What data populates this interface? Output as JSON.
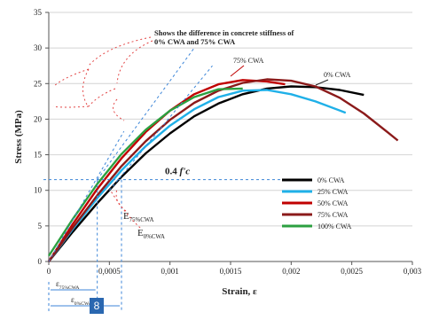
{
  "chart_data": {
    "type": "line",
    "xlabel": "Strain, ε",
    "ylabel": "Stress (MPa)",
    "xlim": [
      0,
      0.003
    ],
    "ylim": [
      0,
      35
    ],
    "x_ticks": [
      "0",
      "0,0005",
      "0,001",
      "0,0015",
      "0,002",
      "0,0025",
      "0,003"
    ],
    "y_ticks": [
      "0",
      "5",
      "10",
      "15",
      "20",
      "25",
      "30",
      "35"
    ],
    "grid": "horizontal",
    "legend_position": "lower-right",
    "series": [
      {
        "name": "0% CWA",
        "color": "#000000",
        "x": [
          0,
          0.0002,
          0.0004,
          0.0006,
          0.0008,
          0.001,
          0.0012,
          0.0014,
          0.0016,
          0.0018,
          0.002,
          0.0022,
          0.0024,
          0.0026
        ],
        "y": [
          0,
          4.2,
          8.2,
          11.9,
          15.2,
          18.0,
          20.4,
          22.2,
          23.5,
          24.3,
          24.6,
          24.5,
          24.1,
          23.4
        ]
      },
      {
        "name": "25% CWA",
        "color": "#1fb0e8",
        "x": [
          0,
          0.0002,
          0.0004,
          0.0006,
          0.0008,
          0.001,
          0.0012,
          0.0014,
          0.0016,
          0.0018,
          0.002,
          0.0022,
          0.00245
        ],
        "y": [
          0,
          4.6,
          8.9,
          12.8,
          16.2,
          19.1,
          21.4,
          23.1,
          24.0,
          24.1,
          23.5,
          22.5,
          20.9
        ]
      },
      {
        "name": "50% CWA",
        "color": "#c00000",
        "x": [
          0,
          0.0002,
          0.0004,
          0.0006,
          0.0008,
          0.001,
          0.0012,
          0.0014,
          0.0016,
          0.0018,
          0.00195
        ],
        "y": [
          0,
          5.3,
          10.2,
          14.5,
          18.2,
          21.2,
          23.5,
          24.9,
          25.5,
          25.3,
          24.9
        ]
      },
      {
        "name": "75% CWA",
        "color": "#8b1a1a",
        "x": [
          0,
          0.0002,
          0.0004,
          0.0006,
          0.0008,
          0.001,
          0.0012,
          0.0014,
          0.0016,
          0.0018,
          0.002,
          0.0022,
          0.0024,
          0.0026,
          0.0028,
          0.00288
        ],
        "y": [
          0,
          4.8,
          9.3,
          13.4,
          16.9,
          19.9,
          22.3,
          24.0,
          25.1,
          25.6,
          25.4,
          24.6,
          23.0,
          20.8,
          18.1,
          17.0
        ]
      },
      {
        "name": "100% CWA",
        "color": "#2ca040",
        "x": [
          0,
          0.0002,
          0.0004,
          0.0006,
          0.0008,
          0.001,
          0.0012,
          0.0014,
          0.0016
        ],
        "y": [
          0.8,
          6.0,
          10.9,
          15.1,
          18.5,
          21.2,
          23.1,
          24.2,
          24.3
        ]
      }
    ],
    "annotations": {
      "stiffness_note_line1": "Shows the difference in concrete stiffness of",
      "stiffness_note_line2": "0% CWA and 75% CWA",
      "label_75": "75% CWA",
      "label_0": "0% CWA",
      "fc_prefix": "0.4 ",
      "fc_symbol": "f'c",
      "e75_main": "E",
      "e75_sub": "75%CWA",
      "e0_main": "E",
      "e0_sub": "0%CWA",
      "eps75_main": "ε",
      "eps75_sub": "75%CWA",
      "eps0_main": "ε",
      "eps0_sub": "0%CWA"
    },
    "fc_level": 11.5,
    "strain_marks": [
      0.0004,
      0.0006
    ]
  },
  "badge": {
    "text": "8",
    "color": "#2a67b0"
  }
}
